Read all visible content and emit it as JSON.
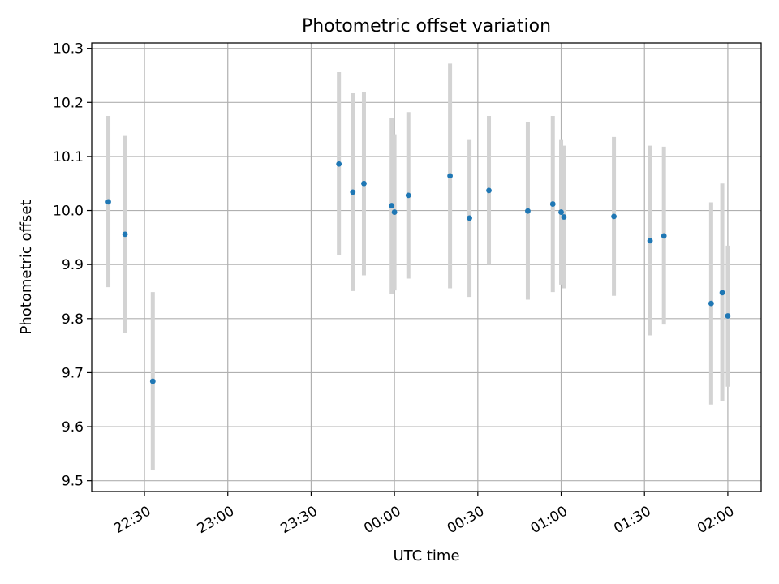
{
  "chart_data": {
    "type": "scatter",
    "title": "Photometric offset variation",
    "xlabel": "UTC time",
    "ylabel": "Photometric offset",
    "x_axis_type": "time",
    "xlim": [
      "22:11",
      "02:12"
    ],
    "ylim": [
      9.48,
      10.31
    ],
    "x_ticks": [
      "22:30",
      "23:00",
      "23:30",
      "00:00",
      "00:30",
      "01:00",
      "01:30",
      "02:00"
    ],
    "y_ticks": [
      "9.5",
      "9.6",
      "9.7",
      "9.8",
      "9.9",
      "10.0",
      "10.1",
      "10.2",
      "10.3"
    ],
    "grid": true,
    "colors": {
      "point": "#1f77b4",
      "errorbar": "#d3d3d3",
      "grid": "#b0b0b0",
      "axes": "#000000"
    },
    "points": [
      {
        "time": "22:17",
        "y": 10.016,
        "err_low": 9.858,
        "err_high": 10.175
      },
      {
        "time": "22:23",
        "y": 9.956,
        "err_low": 9.774,
        "err_high": 10.138
      },
      {
        "time": "22:33",
        "y": 9.684,
        "err_low": 9.52,
        "err_high": 9.849
      },
      {
        "time": "23:40",
        "y": 10.086,
        "err_low": 9.917,
        "err_high": 10.256
      },
      {
        "time": "23:45",
        "y": 10.034,
        "err_low": 9.851,
        "err_high": 10.217
      },
      {
        "time": "23:49",
        "y": 10.05,
        "err_low": 9.88,
        "err_high": 10.22
      },
      {
        "time": "23:59",
        "y": 10.009,
        "err_low": 9.846,
        "err_high": 10.172
      },
      {
        "time": "00:00",
        "y": 9.997,
        "err_low": 9.852,
        "err_high": 10.141
      },
      {
        "time": "00:05",
        "y": 10.028,
        "err_low": 9.874,
        "err_high": 10.182
      },
      {
        "time": "00:20",
        "y": 10.064,
        "err_low": 9.856,
        "err_high": 10.272
      },
      {
        "time": "00:27",
        "y": 9.986,
        "err_low": 9.84,
        "err_high": 10.132
      },
      {
        "time": "00:34",
        "y": 10.037,
        "err_low": 9.9,
        "err_high": 10.175
      },
      {
        "time": "00:48",
        "y": 9.999,
        "err_low": 9.835,
        "err_high": 10.163
      },
      {
        "time": "00:57",
        "y": 10.012,
        "err_low": 9.849,
        "err_high": 10.175
      },
      {
        "time": "01:00",
        "y": 9.997,
        "err_low": 9.863,
        "err_high": 10.132
      },
      {
        "time": "01:01",
        "y": 9.988,
        "err_low": 9.856,
        "err_high": 10.12
      },
      {
        "time": "01:19",
        "y": 9.989,
        "err_low": 9.842,
        "err_high": 10.136
      },
      {
        "time": "01:32",
        "y": 9.944,
        "err_low": 9.769,
        "err_high": 10.12
      },
      {
        "time": "01:37",
        "y": 9.953,
        "err_low": 9.789,
        "err_high": 10.118
      },
      {
        "time": "01:54",
        "y": 9.828,
        "err_low": 9.641,
        "err_high": 10.015
      },
      {
        "time": "01:58",
        "y": 9.848,
        "err_low": 9.647,
        "err_high": 10.05
      },
      {
        "time": "02:00",
        "y": 9.805,
        "err_low": 9.674,
        "err_high": 9.935
      }
    ]
  }
}
